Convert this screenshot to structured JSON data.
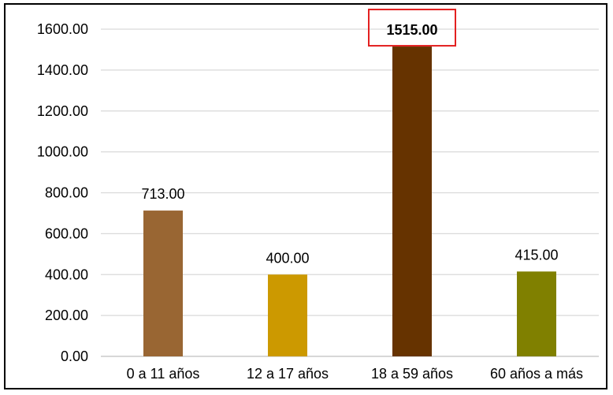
{
  "chart_data": {
    "type": "bar",
    "categories": [
      "0 a 11 años",
      "12 a 17 años",
      "18 a 59 años",
      "60 años a más"
    ],
    "values": [
      713,
      400,
      1515,
      415
    ],
    "data_labels": [
      "713.00",
      "400.00",
      "1515.00",
      "415.00"
    ],
    "colors": [
      "#996633",
      "#CC9900",
      "#663300",
      "#808000"
    ],
    "highlight_index": 2,
    "highlight_box_color": "#E32020",
    "ylim": [
      0,
      1600
    ],
    "yticks": [
      0,
      200,
      400,
      600,
      800,
      1000,
      1200,
      1400,
      1600
    ],
    "ytick_labels": [
      "0.00",
      "200.00",
      "400.00",
      "600.00",
      "800.00",
      "1000.00",
      "1200.00",
      "1400.00",
      "1600.00"
    ],
    "grid": true,
    "gridline_color": "#D9D9D9",
    "title": "",
    "xlabel": "",
    "ylabel": ""
  }
}
